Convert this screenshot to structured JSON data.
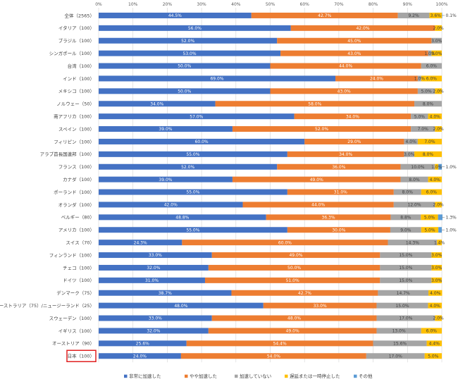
{
  "chart_data": {
    "type": "bar",
    "orientation": "horizontal",
    "stacked": true,
    "percent_axis": true,
    "xlim": [
      0,
      100
    ],
    "ticks": [
      "0%",
      "10%",
      "20%",
      "30%",
      "40%",
      "50%",
      "60%",
      "70%",
      "80%",
      "90%",
      "100%"
    ],
    "grid": true,
    "legend_position": "bottom",
    "highlight_category": "日本（100）",
    "categories": [
      "全体（2565）",
      "イタリア（100）",
      "ブラジル（100）",
      "シンガポール（100）",
      "台湾（100）",
      "インド（100）",
      "メキシコ（100）",
      "ノルウェー（50）",
      "南アフリカ（100）",
      "スペイン（100）",
      "フィリピン（100）",
      "アラブ首長国連邦（100）",
      "フランス（100）",
      "カナダ（100）",
      "ポーランド（100）",
      "オランダ（100）",
      "ベルギー（80）",
      "アメリカ（100）",
      "スイス（70）",
      "フィンランド（100）",
      "チェコ（100）",
      "ドイツ（100）",
      "デンマーク（75）",
      "オーストラリア（75）/ニュージーランド（25）",
      "スウェーデン（100）",
      "イギリス（100）",
      "オーストリア（90）",
      "日本（100）"
    ],
    "series": [
      {
        "name": "非常に加速した",
        "color": "#4472C4",
        "values": [
          44.5,
          56.0,
          52.0,
          53.0,
          50.0,
          69.0,
          50.0,
          34.0,
          57.0,
          39.0,
          60.0,
          55.0,
          52.0,
          39.0,
          55.0,
          42.0,
          48.8,
          55.0,
          24.3,
          33.0,
          32.0,
          31.0,
          38.7,
          48.0,
          33.0,
          32.0,
          25.6,
          24.0
        ]
      },
      {
        "name": "やや加速した",
        "color": "#ED7D31",
        "values": [
          42.7,
          42.0,
          45.0,
          43.0,
          44.0,
          24.0,
          43.0,
          58.0,
          34.0,
          52.0,
          29.0,
          34.0,
          36.0,
          49.0,
          31.0,
          44.0,
          36.3,
          30.0,
          60.0,
          49.0,
          50.0,
          51.0,
          42.7,
          33.0,
          48.0,
          49.0,
          54.4,
          54.0
        ]
      },
      {
        "name": "加速していない",
        "color": "#A5A5A5",
        "values": [
          9.2,
          0,
          3.0,
          1.0,
          6.0,
          1.0,
          5.0,
          8.0,
          5.0,
          7.0,
          4.0,
          3.0,
          10.0,
          8.0,
          8.0,
          12.0,
          8.8,
          9.0,
          14.3,
          15.0,
          15.0,
          15.0,
          14.7,
          15.0,
          17.0,
          13.0,
          15.6,
          17.0
        ]
      },
      {
        "name": "遅延または一時停止した",
        "color": "#FFC000",
        "values": [
          3.6,
          2.0,
          0,
          3.0,
          0,
          6.0,
          2.0,
          0,
          4.0,
          2.0,
          7.0,
          8.0,
          1.0,
          4.0,
          6.0,
          2.0,
          5.0,
          5.0,
          1.4,
          3.0,
          3.0,
          3.0,
          4.0,
          4.0,
          2.0,
          6.0,
          4.4,
          5.0
        ]
      },
      {
        "name": "その他",
        "color": "#5B9BD5",
        "values": [
          0.1,
          0,
          0,
          0,
          0,
          0,
          0,
          0,
          0,
          0,
          0,
          0,
          1.0,
          0,
          0,
          0,
          1.3,
          1.0,
          0,
          0,
          0,
          0,
          0,
          0,
          0,
          0,
          0,
          0
        ]
      }
    ],
    "data_labels": [
      [
        "44.5%",
        "42.7%",
        "9.2%",
        "3.6%",
        "0.1%"
      ],
      [
        "56.0%",
        "42.0%",
        "",
        "2.0%",
        ""
      ],
      [
        "52.0%",
        "45.0%",
        "3.0%",
        "",
        ""
      ],
      [
        "53.0%",
        "43.0%",
        "1.0%",
        "3.0%",
        ""
      ],
      [
        "50.0%",
        "44.0%",
        "6.0%",
        "",
        ""
      ],
      [
        "69.0%",
        "24.0%",
        "1.0%",
        "6.0%",
        ""
      ],
      [
        "50.0%",
        "43.0%",
        "5.0%",
        "2.0%",
        ""
      ],
      [
        "34.0%",
        "58.0%",
        "8.0%",
        "",
        ""
      ],
      [
        "57.0%",
        "34.0%",
        "5.0%",
        "4.0%",
        ""
      ],
      [
        "39.0%",
        "52.0%",
        "7.0%",
        "2.0%",
        ""
      ],
      [
        "60.0%",
        "29.0%",
        "4.0%",
        "7.0%",
        ""
      ],
      [
        "55.0%",
        "34.0%",
        "3.0%",
        "8.0%",
        ""
      ],
      [
        "52.0%",
        "36.0%",
        "10.0%",
        "1.0%",
        "1.0%"
      ],
      [
        "39.0%",
        "49.0%",
        "8.0%",
        "4.0%",
        ""
      ],
      [
        "55.0%",
        "31.0%",
        "8.0%",
        "6.0%",
        ""
      ],
      [
        "42.0%",
        "44.0%",
        "12.0%",
        "2.0%",
        ""
      ],
      [
        "48.8%",
        "36.3%",
        "8.8%",
        "5.0%",
        "1.3%"
      ],
      [
        "55.0%",
        "30.0%",
        "9.0%",
        "5.0%",
        "1.0%"
      ],
      [
        "24.3%",
        "60.0%",
        "14.3%",
        "1.4%",
        ""
      ],
      [
        "33.0%",
        "49.0%",
        "15.0%",
        "3.0%",
        ""
      ],
      [
        "32.0%",
        "50.0%",
        "15.0%",
        "3.0%",
        ""
      ],
      [
        "31.0%",
        "51.0%",
        "15.0%",
        "3.0%",
        ""
      ],
      [
        "38.7%",
        "42.7%",
        "14.7%",
        "4.0%",
        ""
      ],
      [
        "48.0%",
        "33.0%",
        "15.0%",
        "4.0%",
        ""
      ],
      [
        "33.0%",
        "48.0%",
        "17.0%",
        "2.0%",
        ""
      ],
      [
        "32.0%",
        "49.0%",
        "13.0%",
        "6.0%",
        ""
      ],
      [
        "25.6%",
        "54.4%",
        "15.6%",
        "4.4%",
        ""
      ],
      [
        "24.0%",
        "54.0%",
        "17.0%",
        "5.0%",
        ""
      ]
    ]
  }
}
